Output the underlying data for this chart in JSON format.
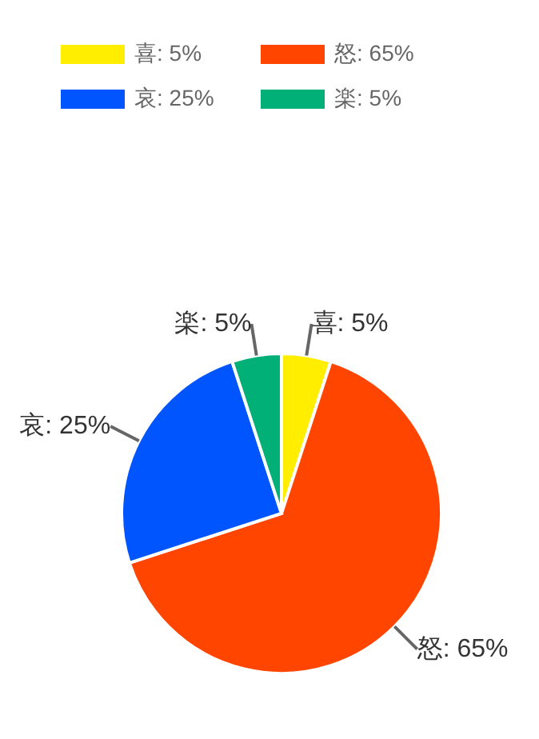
{
  "chart_data": {
    "type": "pie",
    "categories": [
      "喜: 5%",
      "怒: 65%",
      "哀: 25%",
      "楽: 5%"
    ],
    "values": [
      5,
      65,
      25,
      5
    ],
    "colors": [
      "#ffee00",
      "#ff4500",
      "#0055ff",
      "#00b077"
    ],
    "legend": "top"
  }
}
